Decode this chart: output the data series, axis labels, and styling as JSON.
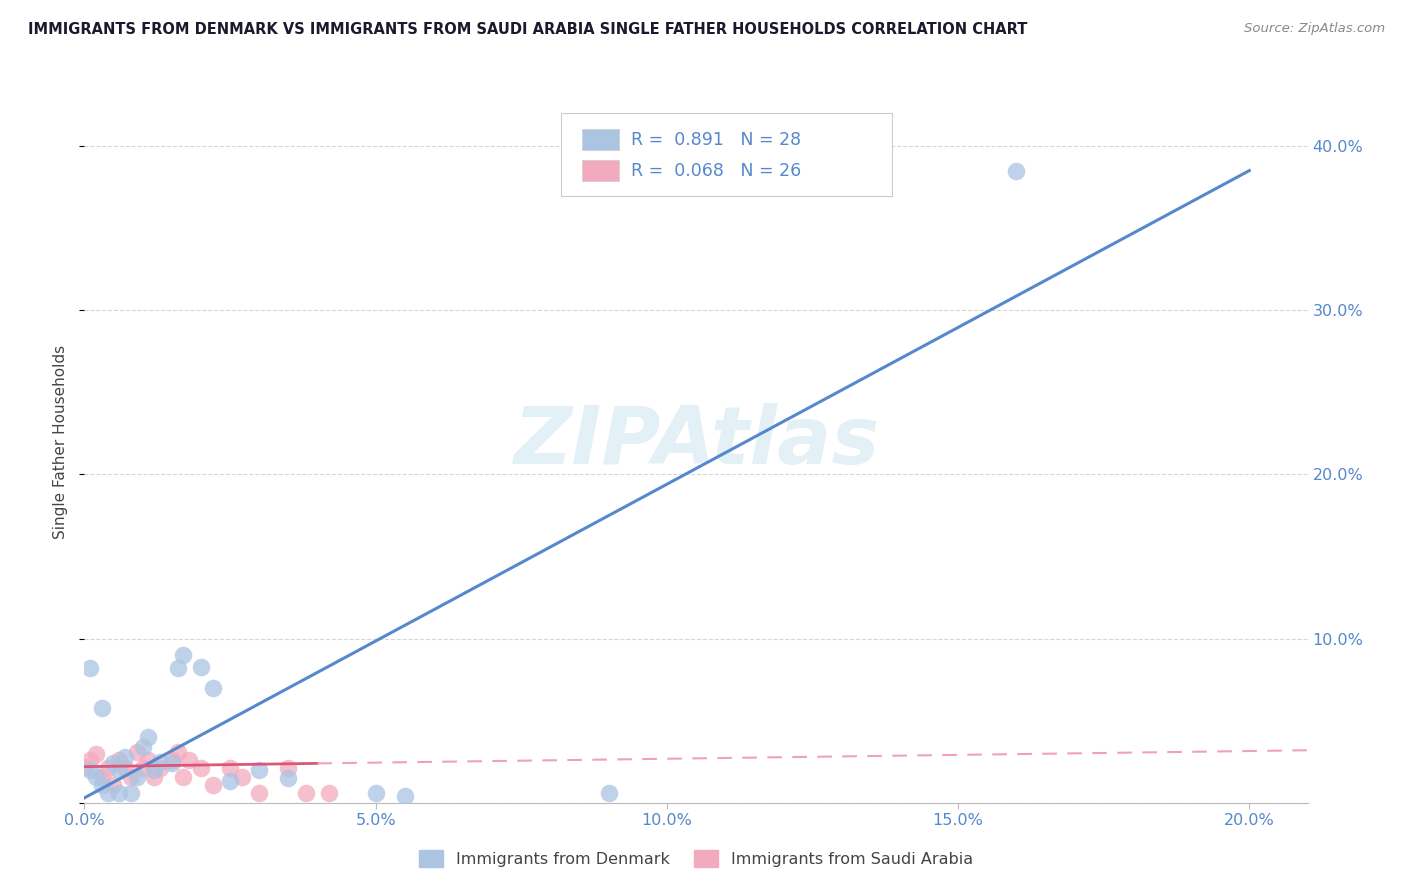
{
  "title": "IMMIGRANTS FROM DENMARK VS IMMIGRANTS FROM SAUDI ARABIA SINGLE FATHER HOUSEHOLDS CORRELATION CHART",
  "source": "Source: ZipAtlas.com",
  "ylabel": "Single Father Households",
  "xlim": [
    0.0,
    0.21
  ],
  "ylim": [
    0.0,
    0.44
  ],
  "xticks": [
    0.0,
    0.05,
    0.1,
    0.15,
    0.2
  ],
  "xtick_labels": [
    "0.0%",
    "5.0%",
    "10.0%",
    "15.0%",
    "20.0%"
  ],
  "yticks": [
    0.0,
    0.1,
    0.2,
    0.3,
    0.4
  ],
  "ytick_labels": [
    "",
    "10.0%",
    "20.0%",
    "30.0%",
    "40.0%"
  ],
  "denmark_color": "#aac4e2",
  "saudi_color": "#f4aabe",
  "denmark_line_color": "#5588cc",
  "saudi_line_solid_color": "#dd5577",
  "saudi_line_dash_color": "#f0a0b8",
  "R_denmark": 0.891,
  "N_denmark": 28,
  "R_saudi": 0.068,
  "N_saudi": 26,
  "legend_text_color": "#5588cc",
  "watermark": "ZIPAtlas",
  "denmark_regression": [
    0.0,
    0.003,
    0.2,
    0.385
  ],
  "saudi_regression_solid": [
    0.0,
    0.022,
    0.04,
    0.024
  ],
  "saudi_regression_dash": [
    0.04,
    0.024,
    0.21,
    0.032
  ],
  "denmark_points": [
    [
      0.001,
      0.02
    ],
    [
      0.002,
      0.016
    ],
    [
      0.003,
      0.011
    ],
    [
      0.004,
      0.006
    ],
    [
      0.005,
      0.024
    ],
    [
      0.006,
      0.02
    ],
    [
      0.007,
      0.028
    ],
    [
      0.008,
      0.006
    ],
    [
      0.009,
      0.016
    ],
    [
      0.01,
      0.034
    ],
    [
      0.011,
      0.04
    ],
    [
      0.012,
      0.02
    ],
    [
      0.013,
      0.025
    ],
    [
      0.015,
      0.024
    ],
    [
      0.016,
      0.082
    ],
    [
      0.017,
      0.09
    ],
    [
      0.02,
      0.083
    ],
    [
      0.022,
      0.07
    ],
    [
      0.03,
      0.02
    ],
    [
      0.035,
      0.015
    ],
    [
      0.05,
      0.006
    ],
    [
      0.055,
      0.004
    ],
    [
      0.09,
      0.006
    ],
    [
      0.16,
      0.385
    ],
    [
      0.001,
      0.082
    ],
    [
      0.003,
      0.058
    ],
    [
      0.006,
      0.006
    ],
    [
      0.025,
      0.013
    ]
  ],
  "saudi_points": [
    [
      0.0,
      0.022
    ],
    [
      0.001,
      0.026
    ],
    [
      0.002,
      0.03
    ],
    [
      0.003,
      0.016
    ],
    [
      0.004,
      0.021
    ],
    [
      0.005,
      0.011
    ],
    [
      0.006,
      0.026
    ],
    [
      0.007,
      0.021
    ],
    [
      0.008,
      0.016
    ],
    [
      0.009,
      0.031
    ],
    [
      0.01,
      0.021
    ],
    [
      0.011,
      0.026
    ],
    [
      0.012,
      0.016
    ],
    [
      0.013,
      0.021
    ],
    [
      0.015,
      0.026
    ],
    [
      0.016,
      0.031
    ],
    [
      0.017,
      0.016
    ],
    [
      0.018,
      0.026
    ],
    [
      0.02,
      0.021
    ],
    [
      0.022,
      0.011
    ],
    [
      0.025,
      0.021
    ],
    [
      0.027,
      0.016
    ],
    [
      0.03,
      0.006
    ],
    [
      0.035,
      0.021
    ],
    [
      0.038,
      0.006
    ],
    [
      0.042,
      0.006
    ]
  ]
}
